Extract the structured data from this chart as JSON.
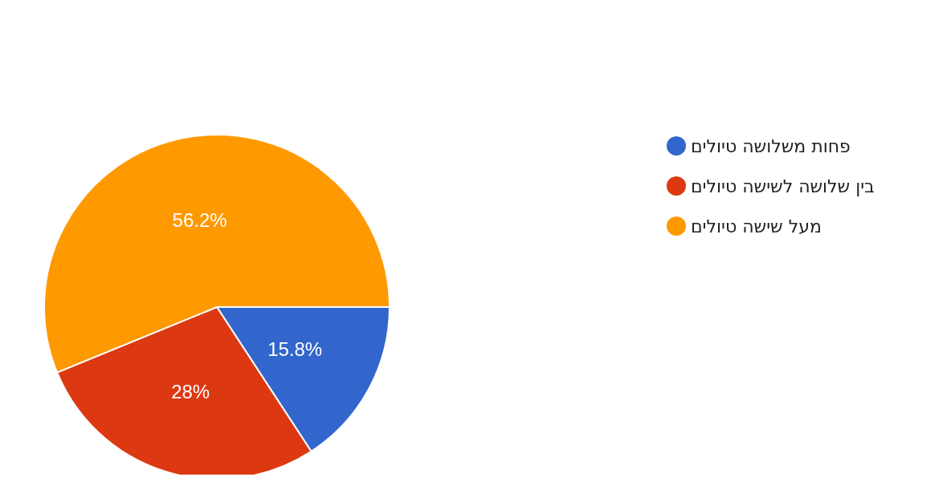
{
  "chart_data": {
    "type": "pie",
    "categories": [
      "פחות משלושה טיולים",
      "בין שלושה לשישה טיולים",
      "מעל שישה טיולים"
    ],
    "values": [
      15.8,
      28,
      56.2
    ],
    "colors": [
      "#3366cc",
      "#dc3912",
      "#ff9900"
    ],
    "value_labels": [
      "15.8%",
      "28%",
      "56.2%"
    ],
    "legend": "top right"
  }
}
